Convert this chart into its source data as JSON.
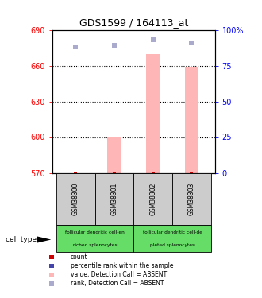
{
  "title": "GDS1599 / 164113_at",
  "samples": [
    "GSM38300",
    "GSM38301",
    "GSM38302",
    "GSM38303"
  ],
  "ylim_left": [
    570,
    690
  ],
  "ylim_right": [
    0,
    100
  ],
  "yticks_left": [
    570,
    600,
    630,
    660,
    690
  ],
  "yticks_right": [
    0,
    25,
    50,
    75,
    100
  ],
  "ytick_labels_right": [
    "0",
    "25",
    "50",
    "75",
    "100%"
  ],
  "bar_values": [
    570,
    600,
    670,
    659
  ],
  "bar_base": 570,
  "blue_squares_percentile": [
    88,
    89,
    93,
    91
  ],
  "bar_color": "#ffb6b6",
  "blue_color": "#4444aa",
  "light_blue_color": "#aaaacc",
  "red_color": "#cc0000",
  "group1_label_line1": "follicular dendritic cell-en",
  "group1_label_line2": "riched splenocytes",
  "group2_label_line1": "follicular dendritic cell-de",
  "group2_label_line2": "pleted splenocytes",
  "green_color": "#66dd66",
  "gray_color": "#cccccc",
  "label_count": "count",
  "label_percentile": "percentile rank within the sample",
  "label_value_absent": "value, Detection Call = ABSENT",
  "label_rank_absent": "rank, Detection Call = ABSENT",
  "cell_type_label": "cell type",
  "dotted_lines": [
    600,
    630,
    660
  ],
  "bar_width": 0.35
}
